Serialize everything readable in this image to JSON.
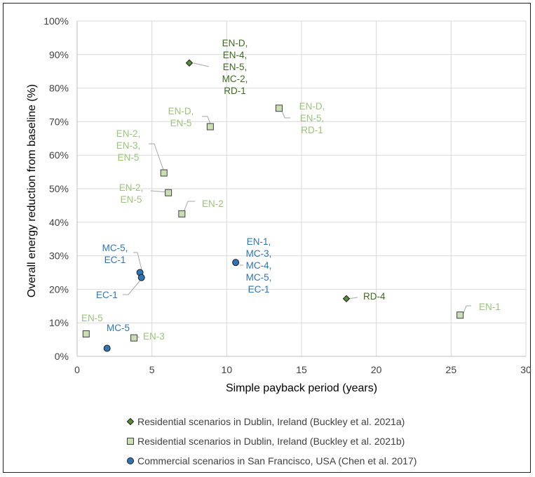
{
  "chart_data": {
    "type": "scatter",
    "xlabel": "Simple payback period (years)",
    "ylabel": "Overall energy reduction from baseline (%)",
    "xlim": [
      0,
      30
    ],
    "ylim": [
      0,
      100
    ],
    "x_ticks": [
      "0",
      "5",
      "10",
      "15",
      "20",
      "25",
      "30"
    ],
    "y_ticks": [
      "0%",
      "10%",
      "20%",
      "30%",
      "40%",
      "50%",
      "60%",
      "70%",
      "80%",
      "90%",
      "100%"
    ],
    "grid": true,
    "legend_position": "bottom",
    "series": [
      {
        "name": "Residential scenarios in Dublin, Ireland (Buckley et al. 2021a)",
        "marker": "diamond",
        "color": "#5a8a3a",
        "label_color": "#3d6b1e",
        "points": [
          {
            "x": 7.5,
            "y": 87.5,
            "label": [
              "EN-D,",
              "EN-4,",
              "EN-5,",
              "MC-2,",
              "RD-1"
            ]
          },
          {
            "x": 18.0,
            "y": 17.2,
            "label": [
              "RD-4"
            ]
          }
        ]
      },
      {
        "name": "Residential scenarios in Dublin, Ireland (Buckley et al. 2021b)",
        "marker": "square",
        "color": "#c9dfb3",
        "label_color": "#9bc47a",
        "points": [
          {
            "x": 13.5,
            "y": 74.0,
            "label": [
              "EN-D,",
              "EN-5,",
              "RD-1"
            ]
          },
          {
            "x": 8.9,
            "y": 68.5,
            "label": [
              "EN-D,",
              "EN-5"
            ]
          },
          {
            "x": 5.8,
            "y": 54.7,
            "label": [
              "EN-2,",
              "EN-3,",
              "EN-5"
            ]
          },
          {
            "x": 6.1,
            "y": 48.8,
            "label": [
              "EN-2,",
              "EN-5"
            ]
          },
          {
            "x": 7.0,
            "y": 42.5,
            "label": [
              "EN-2"
            ]
          },
          {
            "x": 25.6,
            "y": 12.3,
            "label": [
              "EN-1"
            ]
          },
          {
            "x": 0.6,
            "y": 6.7,
            "label": [
              "EN-5"
            ]
          },
          {
            "x": 3.8,
            "y": 5.5,
            "label": [
              "EN-3"
            ]
          }
        ]
      },
      {
        "name": "Commercial scenarios in San Francisco, USA (Chen et al. 2017)",
        "marker": "circle",
        "color": "#2e75b6",
        "label_color": "#2e75b6",
        "points": [
          {
            "x": 4.2,
            "y": 25.0,
            "label": [
              "MC-5,",
              "EC-1"
            ]
          },
          {
            "x": 4.3,
            "y": 23.5,
            "label": [
              "EC-1"
            ]
          },
          {
            "x": 10.6,
            "y": 28.0,
            "label": [
              "EN-1,",
              "MC-3,",
              "MC-4,",
              "MC-5,",
              "EC-1"
            ]
          },
          {
            "x": 2.0,
            "y": 2.4,
            "label": [
              "MC-5"
            ]
          }
        ]
      }
    ]
  }
}
